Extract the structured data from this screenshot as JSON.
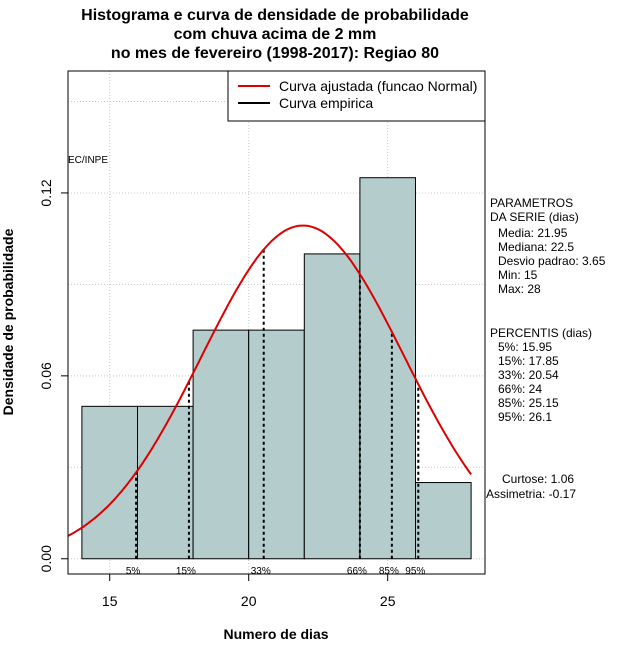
{
  "chart_data": {
    "type": "bar",
    "title_lines": [
      "Histograma e curva de densidade de probabilidade",
      "com chuva acima de 2 mm",
      "no mes de fevereiro (1998-2017): Regiao 80"
    ],
    "xlabel": "Numero de dias",
    "ylabel": "Densidade de probabilidade",
    "xlim": [
      13.5,
      28.5
    ],
    "ylim": [
      -0.005,
      0.16
    ],
    "xticks": [
      15,
      20,
      25
    ],
    "yticks": [
      0.0,
      0.06,
      0.12
    ],
    "ytick_labels": [
      "0.00",
      "0.06",
      "0.12"
    ],
    "grid": true,
    "legend_position": "top-right",
    "watermark": "EC/INPE",
    "bins": [
      {
        "x0": 14,
        "x1": 16,
        "density": 0.05
      },
      {
        "x0": 16,
        "x1": 18,
        "density": 0.05
      },
      {
        "x0": 18,
        "x1": 20,
        "density": 0.075
      },
      {
        "x0": 20,
        "x1": 22,
        "density": 0.075
      },
      {
        "x0": 22,
        "x1": 24,
        "density": 0.1
      },
      {
        "x0": 24,
        "x1": 26,
        "density": 0.125
      },
      {
        "x0": 26,
        "x1": 28,
        "density": 0.025
      }
    ],
    "normal_fit": {
      "label": "Curva ajustada (funcao Normal)",
      "mean": 21.95,
      "sd": 3.65,
      "color": "#dd0000"
    },
    "empirical": {
      "label": "Curva empirica",
      "color": "#000000"
    },
    "percentile_lines": [
      {
        "label": "5%",
        "x": 15.95
      },
      {
        "label": "15%",
        "x": 17.85
      },
      {
        "label": "33%",
        "x": 20.54
      },
      {
        "label": "66%",
        "x": 24
      },
      {
        "label": "85%",
        "x": 25.15
      },
      {
        "label": "95%",
        "x": 26.1
      }
    ],
    "bar_color": "#b4cccb"
  },
  "parametros": {
    "header": "PARAMETROS\nDA SERIE (dias)",
    "lines": [
      "Media: 21.95",
      "Mediana: 22.5",
      "Desvio padrao: 3.65",
      "Min: 15",
      "Max: 28"
    ]
  },
  "percentis": {
    "header": "PERCENTIS (dias)",
    "lines": [
      "5%: 15.95",
      "15%: 17.85",
      "33%: 20.54",
      "66%: 24",
      "85%: 25.15",
      "95%: 26.1"
    ]
  },
  "shape": {
    "lines": [
      "Curtose: 1.06",
      "Assimetria: -0.17"
    ]
  }
}
